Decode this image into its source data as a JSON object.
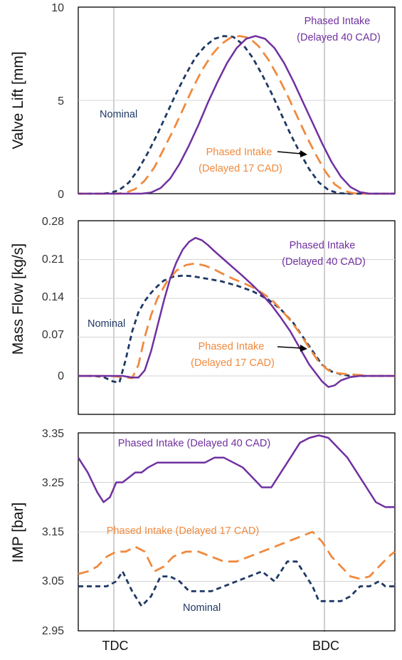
{
  "colors": {
    "nominal": "#1f3864",
    "intake17": "#f08a3e",
    "intake40": "#7030a0",
    "grid": "#d4d4d4",
    "refline": "#bfbfbf"
  },
  "x_categories": [
    "TDC",
    "BDC"
  ],
  "chart_data": [
    {
      "type": "line",
      "ylabel": "Valve Lift [mm]",
      "ylim": [
        0,
        10
      ],
      "yticks": [
        "10",
        "5",
        "0"
      ],
      "xlim": [
        0,
        100
      ],
      "grid": true,
      "series": [
        {
          "color_key": "nominal",
          "dash": "short",
          "x": [
            0,
            7,
            10,
            13,
            16,
            19,
            22,
            25,
            28,
            31,
            34,
            37,
            40,
            43,
            46,
            49,
            52,
            55,
            58,
            61,
            64,
            67,
            70,
            73,
            76,
            79,
            82,
            85,
            88,
            91,
            94,
            100
          ],
          "y": [
            0,
            0,
            0.03,
            0.2,
            0.6,
            1.3,
            2.2,
            3.2,
            4.3,
            5.4,
            6.4,
            7.3,
            7.9,
            8.3,
            8.45,
            8.4,
            8.0,
            7.3,
            6.4,
            5.4,
            4.3,
            3.2,
            2.2,
            1.3,
            0.6,
            0.2,
            0.03,
            0,
            0,
            0,
            0,
            0
          ]
        },
        {
          "color_key": "intake17",
          "dash": "long",
          "x": [
            0,
            12,
            15,
            18,
            21,
            24,
            27,
            30,
            33,
            36,
            39,
            42,
            45,
            48,
            51,
            54,
            57,
            60,
            63,
            66,
            69,
            72,
            75,
            78,
            81,
            84,
            87,
            90,
            93,
            96,
            100
          ],
          "y": [
            0,
            0,
            0.05,
            0.25,
            0.7,
            1.4,
            2.4,
            3.4,
            4.5,
            5.6,
            6.6,
            7.4,
            8.0,
            8.35,
            8.45,
            8.35,
            7.9,
            7.2,
            6.3,
            5.3,
            4.2,
            3.1,
            2.1,
            1.2,
            0.5,
            0.15,
            0.02,
            0,
            0,
            0,
            0
          ]
        },
        {
          "color_key": "intake40",
          "dash": "solid",
          "x": [
            0,
            20,
            23,
            26,
            29,
            32,
            35,
            38,
            41,
            44,
            47,
            50,
            53,
            56,
            59,
            62,
            65,
            68,
            71,
            74,
            77,
            80,
            83,
            86,
            89,
            92,
            95,
            98,
            100
          ],
          "y": [
            0,
            0,
            0.06,
            0.3,
            0.8,
            1.6,
            2.6,
            3.7,
            4.9,
            6.0,
            7.0,
            7.8,
            8.3,
            8.45,
            8.3,
            7.8,
            7.0,
            6.0,
            4.9,
            3.8,
            2.7,
            1.7,
            0.9,
            0.35,
            0.08,
            0,
            0,
            0,
            0
          ]
        }
      ],
      "annotations": [
        {
          "lines": [
            "Phased Intake",
            "(Delayed 40 CAD)"
          ],
          "color_key": "intake40"
        },
        {
          "lines": [
            "Nominal"
          ],
          "color_key": "nominal"
        },
        {
          "lines": [
            "Phased Intake",
            "(Delayed 17 CAD)"
          ],
          "color_key": "intake17"
        }
      ]
    },
    {
      "type": "line",
      "ylabel": "Mass Flow [kg/s]",
      "ylim": [
        -0.07,
        0.28
      ],
      "yticks": [
        "0.28",
        "0.21",
        "0.14",
        "0.07",
        "0"
      ],
      "xlim": [
        0,
        100
      ],
      "grid": true,
      "series": [
        {
          "color_key": "nominal",
          "dash": "short",
          "x": [
            0,
            5,
            8,
            11,
            13,
            15,
            17,
            19,
            21,
            23,
            25,
            27,
            30,
            33,
            36,
            40,
            45,
            50,
            55,
            60,
            64,
            68,
            71,
            74,
            77,
            80,
            83,
            86,
            88,
            90,
            92,
            94,
            96,
            98,
            100
          ],
          "y": [
            0,
            0,
            -0.002,
            -0.01,
            -0.012,
            0.03,
            0.08,
            0.115,
            0.135,
            0.15,
            0.162,
            0.172,
            0.179,
            0.181,
            0.18,
            0.176,
            0.171,
            0.163,
            0.153,
            0.138,
            0.12,
            0.095,
            0.07,
            0.045,
            0.02,
            0.008,
            0.003,
            0,
            0,
            0,
            0,
            0,
            0,
            0,
            0
          ]
        },
        {
          "color_key": "intake17",
          "dash": "long",
          "x": [
            0,
            10,
            14,
            17,
            19,
            21,
            23,
            25,
            28,
            31,
            34,
            37,
            40,
            43,
            46,
            49,
            52,
            55,
            58,
            61,
            64,
            67,
            70,
            73,
            76,
            79,
            82,
            85,
            88,
            90,
            92,
            94,
            97,
            100
          ],
          "y": [
            0,
            0,
            -0.002,
            -0.004,
            0.02,
            0.07,
            0.11,
            0.14,
            0.17,
            0.19,
            0.2,
            0.203,
            0.199,
            0.192,
            0.183,
            0.175,
            0.168,
            0.16,
            0.15,
            0.138,
            0.12,
            0.1,
            0.077,
            0.05,
            0.025,
            0.01,
            0.005,
            0.003,
            0.002,
            0.001,
            0,
            0,
            0,
            0
          ]
        },
        {
          "color_key": "intake40",
          "dash": "solid",
          "x": [
            0,
            14,
            17,
            19,
            21,
            23,
            25,
            27,
            29,
            31,
            33,
            35,
            37,
            39,
            41,
            43,
            46,
            49,
            52,
            55,
            58,
            61,
            64,
            67,
            70,
            73,
            75,
            77,
            79,
            81,
            83,
            86,
            89,
            92,
            95,
            98,
            100
          ],
          "y": [
            0,
            0,
            -0.003,
            -0.003,
            0.01,
            0.045,
            0.09,
            0.135,
            0.175,
            0.205,
            0.228,
            0.242,
            0.249,
            0.245,
            0.236,
            0.225,
            0.21,
            0.195,
            0.18,
            0.164,
            0.147,
            0.128,
            0.105,
            0.08,
            0.05,
            0.02,
            0.005,
            -0.01,
            -0.02,
            -0.017,
            -0.008,
            -0.002,
            0,
            0,
            0,
            0,
            0
          ]
        }
      ],
      "annotations": [
        {
          "lines": [
            "Phased Intake",
            "(Delayed 40 CAD)"
          ],
          "color_key": "intake40"
        },
        {
          "lines": [
            "Nominal"
          ],
          "color_key": "nominal"
        },
        {
          "lines": [
            "Phased Intake",
            "(Delayed 17 CAD)"
          ],
          "color_key": "intake17"
        }
      ]
    },
    {
      "type": "line",
      "ylabel": "IMP [bar]",
      "ylim": [
        2.95,
        3.35
      ],
      "yticks": [
        "3.35",
        "3.25",
        "3.15",
        "3.05",
        "2.95"
      ],
      "xlim": [
        0,
        100
      ],
      "grid": true,
      "series": [
        {
          "color_key": "nominal",
          "dash": "short",
          "x": [
            0,
            3,
            6,
            9,
            12,
            14,
            17,
            20,
            23,
            26,
            29,
            32,
            35,
            38,
            42,
            46,
            50,
            54,
            58,
            62,
            66,
            69,
            72,
            74,
            76,
            78,
            80,
            83,
            86,
            89,
            92,
            95,
            97,
            100
          ],
          "y": [
            3.04,
            3.04,
            3.04,
            3.04,
            3.05,
            3.07,
            3.03,
            3.0,
            3.02,
            3.06,
            3.06,
            3.05,
            3.03,
            3.03,
            3.03,
            3.04,
            3.05,
            3.06,
            3.07,
            3.05,
            3.09,
            3.09,
            3.06,
            3.04,
            3.01,
            3.01,
            3.01,
            3.01,
            3.02,
            3.04,
            3.04,
            3.05,
            3.04,
            3.04
          ]
        },
        {
          "color_key": "intake17",
          "dash": "long",
          "x": [
            0,
            3,
            6,
            9,
            12,
            15,
            18,
            21,
            24,
            27,
            30,
            34,
            38,
            42,
            46,
            50,
            54,
            58,
            62,
            66,
            70,
            74,
            77,
            80,
            83,
            86,
            89,
            92,
            95,
            98,
            100
          ],
          "y": [
            3.065,
            3.07,
            3.08,
            3.1,
            3.11,
            3.11,
            3.12,
            3.11,
            3.07,
            3.08,
            3.1,
            3.11,
            3.11,
            3.1,
            3.09,
            3.09,
            3.1,
            3.11,
            3.12,
            3.13,
            3.14,
            3.15,
            3.13,
            3.1,
            3.08,
            3.06,
            3.055,
            3.06,
            3.08,
            3.1,
            3.11
          ]
        },
        {
          "color_key": "intake40",
          "dash": "solid",
          "x": [
            0,
            3,
            6,
            8,
            10,
            12,
            14,
            16,
            18,
            20,
            22,
            25,
            28,
            31,
            34,
            37,
            40,
            43,
            46,
            49,
            52,
            55,
            58,
            61,
            64,
            67,
            70,
            73,
            76,
            79,
            82,
            85,
            88,
            91,
            94,
            97,
            100
          ],
          "y": [
            3.3,
            3.27,
            3.23,
            3.21,
            3.22,
            3.25,
            3.25,
            3.26,
            3.27,
            3.27,
            3.28,
            3.29,
            3.29,
            3.29,
            3.29,
            3.29,
            3.29,
            3.3,
            3.3,
            3.29,
            3.28,
            3.26,
            3.24,
            3.24,
            3.27,
            3.3,
            3.33,
            3.34,
            3.345,
            3.34,
            3.32,
            3.3,
            3.27,
            3.24,
            3.21,
            3.2,
            3.2
          ]
        }
      ],
      "annotations": [
        {
          "lines": [
            "Phased Intake (Delayed 40 CAD)"
          ],
          "color_key": "intake40"
        },
        {
          "lines": [
            "Phased Intake (Delayed 17 CAD)"
          ],
          "color_key": "intake17"
        },
        {
          "lines": [
            "Nominal"
          ],
          "color_key": "nominal"
        }
      ]
    }
  ]
}
